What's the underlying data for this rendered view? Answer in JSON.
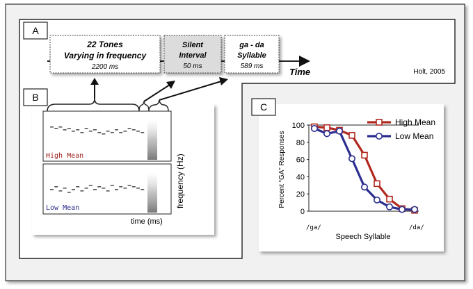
{
  "panels": {
    "a": {
      "label": "A"
    },
    "b": {
      "label": "B"
    },
    "c": {
      "label": "C"
    }
  },
  "timeline": {
    "tones_box": {
      "line1": "22 Tones",
      "line2": "Varying in frequency",
      "duration": "2200 ms"
    },
    "silent_box": {
      "line1": "Silent",
      "line2": "Interval",
      "duration": "50 ms"
    },
    "syllable_box": {
      "line1": "ga - da",
      "line2": "Syllable",
      "duration": "589 ms"
    },
    "time_label": "Time",
    "citation": "Holt, 2005"
  },
  "spectrogram": {
    "high_label": "High Mean",
    "low_label": "Low Mean",
    "y_axis_label": "frequency (Hz)",
    "x_axis_label": "time (ms)",
    "high_label_color": "#a0221c",
    "low_label_color": "#2a2c8c"
  },
  "chart_data": {
    "type": "line",
    "title": "",
    "xlabel": "Speech Syllable",
    "ylabel": "Percent “GA” Responses",
    "x_start_label": "/ga/",
    "x_end_label": "/da/",
    "x": [
      1,
      2,
      3,
      4,
      5,
      6,
      7,
      8,
      9
    ],
    "ylim": [
      0,
      100
    ],
    "yticks": [
      0,
      20,
      40,
      60,
      80,
      100
    ],
    "legend_position": "top-right",
    "series": [
      {
        "name": "High Mean",
        "color": "#b0281e",
        "marker": "square",
        "values": [
          98,
          97,
          94,
          88,
          65,
          32,
          14,
          3,
          1
        ]
      },
      {
        "name": "Low Mean",
        "color": "#2b2e8f",
        "marker": "circle",
        "values": [
          96,
          90,
          93,
          61,
          28,
          13,
          5,
          2,
          2
        ]
      }
    ]
  }
}
